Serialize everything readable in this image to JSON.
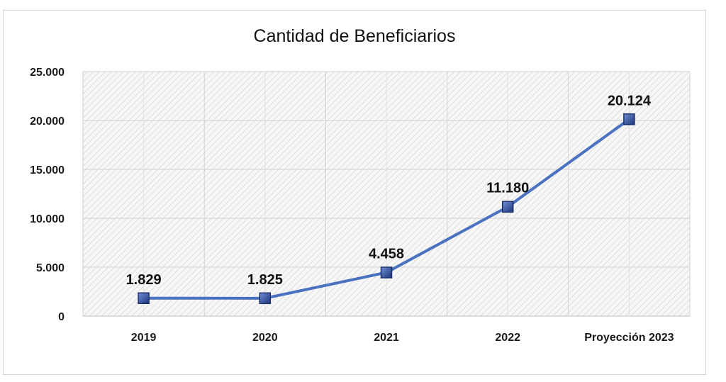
{
  "chart_data": {
    "type": "line",
    "title": "Cantidad de Beneficiarios",
    "categories": [
      "2019",
      "2020",
      "2021",
      "2022",
      "Proyección 2023"
    ],
    "series": [
      {
        "values": [
          1829,
          1825,
          4458,
          11180,
          20124
        ]
      }
    ],
    "data_labels": [
      "1.829",
      "1.825",
      "4.458",
      "11.180",
      "20.124"
    ],
    "yticks": [
      0,
      5000,
      10000,
      15000,
      20000,
      25000
    ],
    "ytick_labels": [
      "0",
      "5.000",
      "10.000",
      "15.000",
      "20.000",
      "25.000"
    ],
    "ylim": [
      0,
      25000
    ],
    "grid": true,
    "legend": "none",
    "colors": {
      "line": "#4a72c0",
      "marker": "#2f4a9a",
      "grid": "#d0d0d0",
      "hatch": "#e2e2e2"
    }
  }
}
